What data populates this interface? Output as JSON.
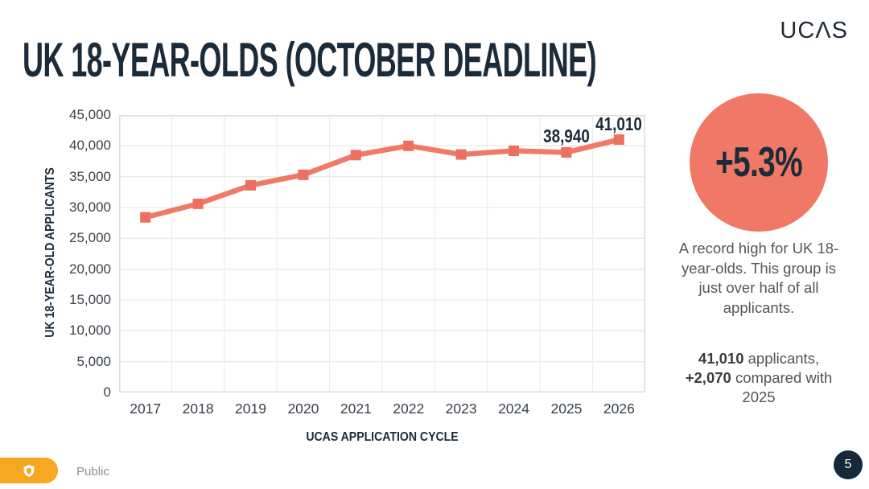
{
  "header": {
    "title": "UK 18-YEAR-OLDS (OCTOBER DEADLINE)",
    "logo_text": "UCΛS"
  },
  "chart_data": {
    "type": "line",
    "x": [
      "2017",
      "2018",
      "2019",
      "2020",
      "2021",
      "2022",
      "2023",
      "2024",
      "2025",
      "2026"
    ],
    "series": [
      {
        "name": "UK 18-year-old applicants",
        "values": [
          28400,
          30600,
          33600,
          35300,
          38500,
          40000,
          38600,
          39200,
          38940,
          41010
        ]
      }
    ],
    "xlabel": "UCAS APPLICATION CYCLE",
    "ylabel": "UK 18-YEAR-OLD APPLICANTS",
    "ylim": [
      0,
      45000
    ],
    "ytick_step": 5000,
    "yticks": [
      "0",
      "5,000",
      "10,000",
      "15,000",
      "20,000",
      "25,000",
      "30,000",
      "35,000",
      "40,000",
      "45,000"
    ],
    "grid": true,
    "legend_position": "none",
    "line_color": "#f07a68",
    "marker_color": "#ec6f5f",
    "marker": "square",
    "point_labels": [
      {
        "index": 8,
        "text": "38,940"
      },
      {
        "index": 9,
        "text": "41,010"
      }
    ]
  },
  "stat_panel": {
    "badge_value": "+5.3%",
    "badge_color": "#ef7866",
    "description": "A record high for UK 18-year-olds. This group is just over half of all applicants.",
    "detail": {
      "bold1": "41,010",
      "text1": " applicants, ",
      "bold2": "+2,070",
      "text2": " compared with 2025"
    }
  },
  "footer": {
    "classification_label": "Public",
    "page_number": "5"
  }
}
